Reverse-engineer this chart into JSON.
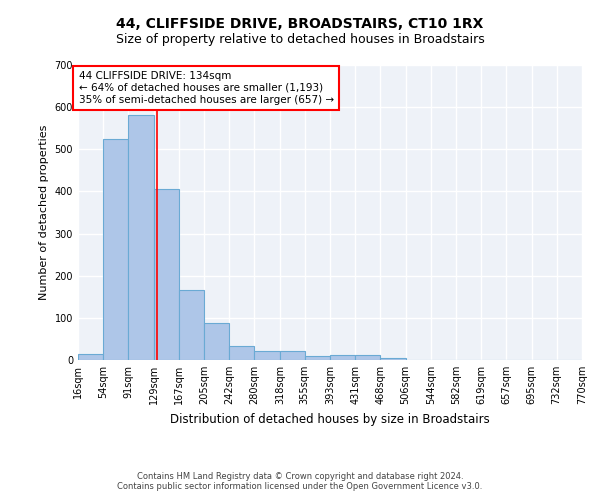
{
  "title": "44, CLIFFSIDE DRIVE, BROADSTAIRS, CT10 1RX",
  "subtitle": "Size of property relative to detached houses in Broadstairs",
  "xlabel": "Distribution of detached houses by size in Broadstairs",
  "ylabel": "Number of detached properties",
  "bin_edges": [
    16,
    54,
    91,
    129,
    167,
    205,
    242,
    280,
    318,
    355,
    393,
    431,
    468,
    506,
    544,
    582,
    619,
    657,
    695,
    732,
    770
  ],
  "bar_heights": [
    14,
    524,
    582,
    405,
    165,
    88,
    34,
    22,
    22,
    10,
    12,
    12,
    5,
    0,
    0,
    0,
    0,
    0,
    0,
    0
  ],
  "bar_color": "#aec6e8",
  "bar_edgecolor": "#6aaad4",
  "bar_linewidth": 0.8,
  "background_color": "#eef2f8",
  "grid_color": "#ffffff",
  "red_line_x": 134,
  "annotation_box_text": "44 CLIFFSIDE DRIVE: 134sqm\n← 64% of detached houses are smaller (1,193)\n35% of semi-detached houses are larger (657) →",
  "ylim": [
    0,
    700
  ],
  "yticks": [
    0,
    100,
    200,
    300,
    400,
    500,
    600,
    700
  ],
  "footer_line1": "Contains HM Land Registry data © Crown copyright and database right 2024.",
  "footer_line2": "Contains public sector information licensed under the Open Government Licence v3.0.",
  "title_fontsize": 10,
  "subtitle_fontsize": 9,
  "xlabel_fontsize": 8.5,
  "ylabel_fontsize": 8,
  "tick_fontsize": 7,
  "annotation_fontsize": 7.5,
  "footer_fontsize": 6
}
